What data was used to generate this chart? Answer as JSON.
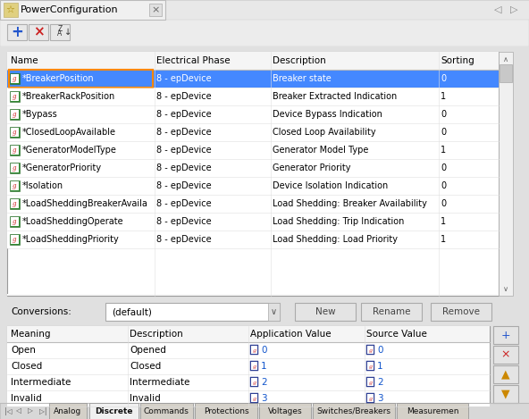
{
  "title": "PowerConfiguration",
  "bg_color": "#e8e8e8",
  "toolbar_bg": "#e4e4e4",
  "table_bg": "#ffffff",
  "selected_row_bg": "#4488ff",
  "selected_row_text": "#ffffff",
  "normal_row_text": "#000000",
  "top_table_headers": [
    "Name",
    "Electrical Phase",
    "Description",
    "Sorting"
  ],
  "top_table_rows": [
    [
      "*BreakerPosition",
      "8 - epDevice",
      "Breaker state",
      "0"
    ],
    [
      "*BreakerRackPosition",
      "8 - epDevice",
      "Breaker Extracted Indication",
      "1"
    ],
    [
      "*Bypass",
      "8 - epDevice",
      "Device Bypass Indication",
      "0"
    ],
    [
      "*ClosedLoopAvailable",
      "8 - epDevice",
      "Closed Loop Availability",
      "0"
    ],
    [
      "*GeneratorModelType",
      "8 - epDevice",
      "Generator Model Type",
      "1"
    ],
    [
      "*GeneratorPriority",
      "8 - epDevice",
      "Generator Priority",
      "0"
    ],
    [
      "*Isolation",
      "8 - epDevice",
      "Device Isolation Indication",
      "0"
    ],
    [
      "*LoadSheddingBreakerAvaila",
      "8 - epDevice",
      "Load Shedding: Breaker Availability",
      "0"
    ],
    [
      "*LoadSheddingOperate",
      "8 - epDevice",
      "Load Shedding: Trip Indication",
      "1"
    ],
    [
      "*LoadSheddingPriority",
      "8 - epDevice",
      "Load Shedding: Load Priority",
      "1"
    ]
  ],
  "bottom_table_headers": [
    "Meaning",
    "Description",
    "Application Value",
    "Source Value"
  ],
  "bottom_table_rows": [
    [
      "Open",
      "Opened",
      "0",
      "0"
    ],
    [
      "Closed",
      "Closed",
      "1",
      "1"
    ],
    [
      "Intermediate",
      "Intermediate",
      "2",
      "2"
    ],
    [
      "Invalid",
      "Invalid",
      "3",
      "3"
    ]
  ],
  "tabs": [
    "Analog",
    "Discrete",
    "Commands",
    "Protections",
    "Voltages",
    "Switches/Breakers",
    "Measuremen"
  ],
  "active_tab": "Discrete",
  "icon_blue": "#2255bb",
  "icon_red": "#cc2222",
  "link_blue": "#1155cc",
  "btn_bg": "#d8d4cc",
  "border_color": "#b0b0b0",
  "sep_color": "#cccccc"
}
